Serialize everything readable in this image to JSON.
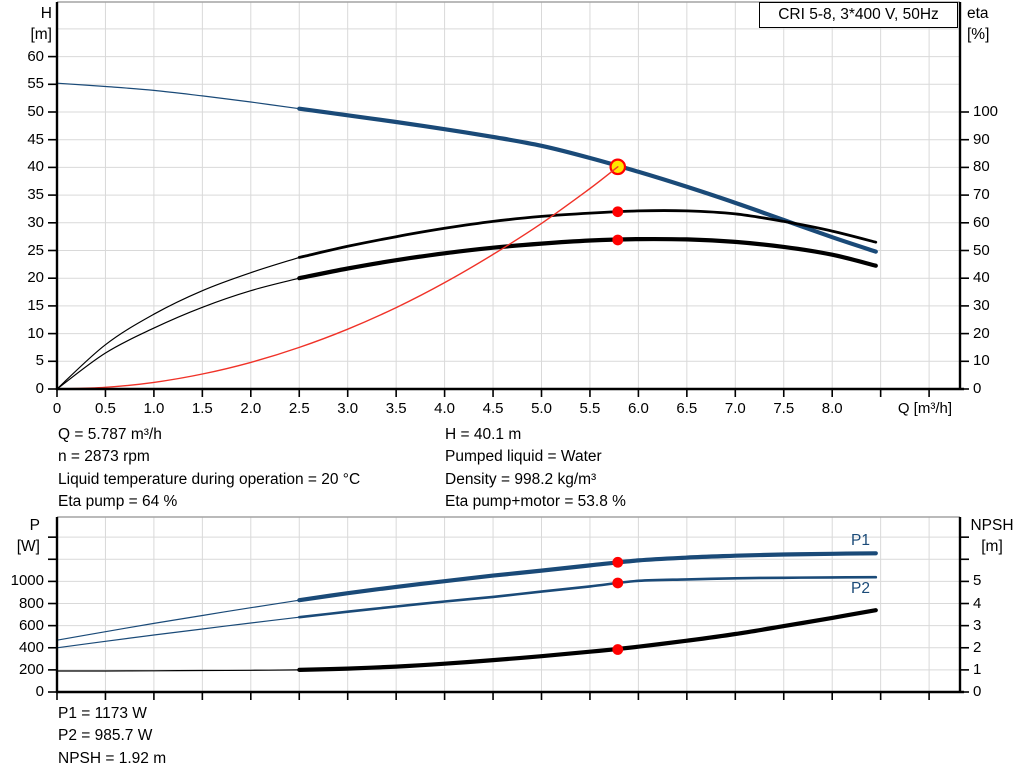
{
  "title_box": {
    "text": "CRI 5-8, 3*400 V, 50Hz"
  },
  "colors": {
    "curve_blue": "#1a4a78",
    "curve_black": "#000000",
    "curve_red": "#f03228",
    "dot_red": "#ff0000",
    "duty_yellow": "#ffe500",
    "grid": "#d9d9d9",
    "frame_gray": "#a3a3a3",
    "axis_black": "#000000"
  },
  "axis_corner_labels": {
    "top_left": [
      "H",
      "[m]"
    ],
    "top_right": [
      "eta",
      "[%]"
    ],
    "bottom_left": [
      "P",
      "[W]"
    ],
    "bottom_right": [
      "NPSH",
      "[m]"
    ]
  },
  "x_axis_label": "Q [m³/h]",
  "curve_labels": {
    "p1": "P1",
    "p2": "P2"
  },
  "info_top_left": [
    "Q = 5.787 m³/h",
    "n = 2873 rpm",
    "Liquid temperature during operation = 20 °C",
    "Eta pump = 64 %"
  ],
  "info_top_right": [
    "H = 40.1 m",
    "Pumped liquid = Water",
    "Density = 998.2 kg/m³",
    "Eta pump+motor = 53.8 %"
  ],
  "info_bottom": [
    "P1 = 1173 W",
    "P2 = 985.7 W",
    "NPSH = 1.92 m"
  ],
  "chart_data": [
    {
      "id": "head-efficiency-chart",
      "plot": "top",
      "type": "line",
      "title": "CRI 5-8, 3*400 V, 50Hz",
      "x_axis": {
        "label": "Q [m³/h]",
        "range": [
          0,
          9.32
        ],
        "tick_values": [
          0,
          0.5,
          1,
          1.5,
          2,
          2.5,
          3,
          3.5,
          4,
          4.5,
          5,
          5.5,
          6,
          6.5,
          7,
          7.5,
          8
        ],
        "tick_labels": [
          "0",
          "0.5",
          "1.0",
          "1.5",
          "2.0",
          "2.5",
          "3.0",
          "3.5",
          "4.0",
          "4.5",
          "5.0",
          "5.5",
          "6.0",
          "6.5",
          "7.0",
          "7.5",
          "8.0"
        ],
        "extra_ticks": [
          8.5,
          9
        ]
      },
      "left_axis": {
        "label": "H [m]",
        "range": [
          0,
          70
        ],
        "tick_values": [
          0,
          5,
          10,
          15,
          20,
          25,
          30,
          35,
          40,
          45,
          50,
          55,
          60
        ],
        "tick_labels": [
          "0",
          "5",
          "10",
          "15",
          "20",
          "25",
          "30",
          "35",
          "40",
          "45",
          "50",
          "55",
          "60"
        ],
        "extra_ticks": [],
        "extra_grid": [
          65
        ]
      },
      "right_axis": {
        "label": "eta [%]",
        "range": [
          0,
          100
        ],
        "tick_values": [
          0,
          10,
          20,
          30,
          40,
          50,
          60,
          70,
          80,
          90,
          100
        ],
        "tick_labels": [
          "0",
          "10",
          "20",
          "30",
          "40",
          "50",
          "60",
          "70",
          "80",
          "90",
          "100"
        ],
        "extra_ticks": [],
        "extra_grid": []
      },
      "series": [
        {
          "name": "pump-curve-H-Q",
          "axis": "left",
          "color": "blue",
          "width": 4.2,
          "thick_from": 2.5,
          "points": [
            [
              0,
              55.2
            ],
            [
              0.5,
              54.6
            ],
            [
              1,
              53.9
            ],
            [
              1.5,
              52.9
            ],
            [
              2,
              51.8
            ],
            [
              2.5,
              50.6
            ],
            [
              3,
              49.4
            ],
            [
              3.5,
              48.2
            ],
            [
              4,
              46.9
            ],
            [
              4.5,
              45.5
            ],
            [
              5,
              43.9
            ],
            [
              5.5,
              41.7
            ],
            [
              6,
              39.2
            ],
            [
              6.5,
              36.5
            ],
            [
              7,
              33.6
            ],
            [
              7.5,
              30.5
            ],
            [
              8,
              27.4
            ],
            [
              8.45,
              24.8
            ]
          ]
        },
        {
          "name": "eta-pump-curve",
          "axis": "right",
          "color": "black",
          "width": 2.8,
          "thick_from": 2.5,
          "points": [
            [
              0,
              0
            ],
            [
              0.5,
              16
            ],
            [
              1,
              27
            ],
            [
              1.5,
              35.5
            ],
            [
              2,
              42
            ],
            [
              2.5,
              47.5
            ],
            [
              3,
              51.5
            ],
            [
              3.5,
              55
            ],
            [
              4,
              58
            ],
            [
              4.5,
              60.5
            ],
            [
              5,
              62.3
            ],
            [
              5.5,
              63.5
            ],
            [
              6,
              64.3
            ],
            [
              6.5,
              64.3
            ],
            [
              7,
              63.2
            ],
            [
              7.5,
              60.5
            ],
            [
              8,
              57
            ],
            [
              8.45,
              53
            ]
          ]
        },
        {
          "name": "eta-pump-motor-curve",
          "axis": "right",
          "color": "black",
          "width": 4.2,
          "thick_from": 2.5,
          "points": [
            [
              0,
              0
            ],
            [
              0.5,
              13
            ],
            [
              1,
              22
            ],
            [
              1.5,
              29.5
            ],
            [
              2,
              35.5
            ],
            [
              2.5,
              40
            ],
            [
              3,
              43.5
            ],
            [
              3.5,
              46.5
            ],
            [
              4,
              49
            ],
            [
              4.5,
              51
            ],
            [
              5,
              52.5
            ],
            [
              5.5,
              53.6
            ],
            [
              6,
              54.1
            ],
            [
              6.5,
              54
            ],
            [
              7,
              53.1
            ],
            [
              7.5,
              51.3
            ],
            [
              8,
              48.5
            ],
            [
              8.45,
              44.5
            ]
          ]
        },
        {
          "name": "system-curve",
          "axis": "left",
          "color": "red",
          "width": 1.4,
          "thick_from": null,
          "points": [
            [
              0,
              0
            ],
            [
              0.5,
              0.3
            ],
            [
              1,
              1.2
            ],
            [
              1.5,
              2.7
            ],
            [
              2,
              4.8
            ],
            [
              2.5,
              7.5
            ],
            [
              3,
              10.8
            ],
            [
              3.5,
              14.7
            ],
            [
              4,
              19.2
            ],
            [
              4.5,
              24.3
            ],
            [
              5,
              29.9
            ],
            [
              5.5,
              36.2
            ],
            [
              5.787,
              40.1
            ]
          ]
        }
      ],
      "markers": [
        {
          "name": "duty-point",
          "style": "duty",
          "axis": "left",
          "q": 5.787,
          "v": 40.1
        },
        {
          "name": "eta-pump-point",
          "style": "dot",
          "axis": "right",
          "q": 5.787,
          "v": 64
        },
        {
          "name": "eta-pump-motor-point",
          "style": "dot",
          "axis": "right",
          "q": 5.787,
          "v": 53.8
        }
      ]
    },
    {
      "id": "power-npsh-chart",
      "plot": "bottom",
      "type": "line",
      "title": "",
      "x_axis": {
        "label": "Q [m³/h]",
        "range": [
          0,
          9.32
        ],
        "tick_values": [
          0,
          0.5,
          1,
          1.5,
          2,
          2.5,
          3,
          3.5,
          4,
          4.5,
          5,
          5.5,
          6,
          6.5,
          7,
          7.5,
          8
        ],
        "tick_labels": [],
        "extra_ticks": [
          8.5,
          9
        ]
      },
      "left_axis": {
        "label": "P [W]",
        "range": [
          0,
          1580
        ],
        "tick_values": [
          0,
          200,
          400,
          600,
          800,
          1000
        ],
        "tick_labels": [
          "0",
          "200",
          "400",
          "600",
          "800",
          "1000"
        ],
        "extra_ticks": [
          1200,
          1400
        ],
        "extra_grid": []
      },
      "right_axis": {
        "label": "NPSH [m]",
        "range": [
          0,
          7.9
        ],
        "tick_values": [
          0,
          1,
          2,
          3,
          4,
          5
        ],
        "tick_labels": [
          "0",
          "1",
          "2",
          "3",
          "4",
          "5"
        ],
        "extra_ticks": [
          6,
          7
        ],
        "extra_grid": []
      },
      "series": [
        {
          "name": "P1-curve",
          "axis": "left",
          "color": "blue",
          "width": 4.2,
          "thick_from": 2.5,
          "points": [
            [
              0,
              468
            ],
            [
              0.5,
              545
            ],
            [
              1,
              620
            ],
            [
              1.5,
              692
            ],
            [
              2,
              762
            ],
            [
              2.5,
              830
            ],
            [
              3,
              893
            ],
            [
              3.5,
              950
            ],
            [
              4,
              1002
            ],
            [
              4.5,
              1052
            ],
            [
              5,
              1098
            ],
            [
              5.5,
              1145
            ],
            [
              6,
              1190
            ],
            [
              6.5,
              1215
            ],
            [
              7,
              1232
            ],
            [
              7.5,
              1243
            ],
            [
              8,
              1250
            ],
            [
              8.45,
              1254
            ]
          ]
        },
        {
          "name": "P2-curve",
          "axis": "left",
          "color": "blue",
          "width": 2.6,
          "thick_from": 2.5,
          "points": [
            [
              0,
              400
            ],
            [
              0.5,
              458
            ],
            [
              1,
              515
            ],
            [
              1.5,
              570
            ],
            [
              2,
              624
            ],
            [
              2.5,
              676
            ],
            [
              3,
              726
            ],
            [
              3.5,
              773
            ],
            [
              4,
              818
            ],
            [
              4.5,
              860
            ],
            [
              5,
              908
            ],
            [
              5.5,
              955
            ],
            [
              6,
              1005
            ],
            [
              6.5,
              1018
            ],
            [
              7,
              1028
            ],
            [
              7.5,
              1033
            ],
            [
              8,
              1036
            ],
            [
              8.45,
              1038
            ]
          ]
        },
        {
          "name": "NPSH-curve",
          "axis": "right",
          "color": "black",
          "width": 4.2,
          "thick_from": 2.5,
          "points": [
            [
              0,
              0.95
            ],
            [
              0.5,
              0.95
            ],
            [
              1,
              0.96
            ],
            [
              1.5,
              0.97
            ],
            [
              2,
              0.98
            ],
            [
              2.5,
              1.0
            ],
            [
              3,
              1.06
            ],
            [
              3.5,
              1.15
            ],
            [
              4,
              1.28
            ],
            [
              4.5,
              1.44
            ],
            [
              5,
              1.62
            ],
            [
              5.5,
              1.82
            ],
            [
              6,
              2.05
            ],
            [
              6.5,
              2.32
            ],
            [
              7,
              2.62
            ],
            [
              7.5,
              2.98
            ],
            [
              8,
              3.35
            ],
            [
              8.45,
              3.7
            ]
          ]
        }
      ],
      "markers": [
        {
          "name": "P1-point",
          "style": "dot",
          "axis": "left",
          "q": 5.787,
          "v": 1173
        },
        {
          "name": "P2-point",
          "style": "dot",
          "axis": "left",
          "q": 5.787,
          "v": 985.7
        },
        {
          "name": "NPSH-point",
          "style": "dot",
          "axis": "right",
          "q": 5.787,
          "v": 1.92
        }
      ]
    }
  ]
}
